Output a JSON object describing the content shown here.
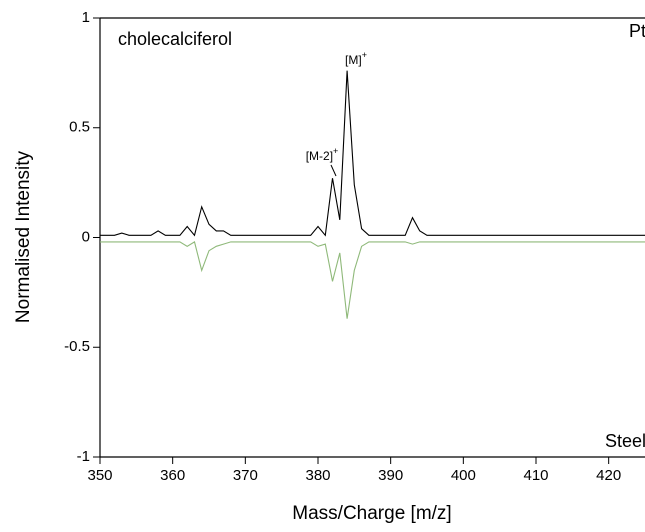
{
  "chart_data": {
    "type": "line",
    "title": "cholecalciferol",
    "x_label": "Mass/Charge [m/z]",
    "y_label": "Normalised Intensity",
    "x": [
      350,
      351,
      352,
      353,
      354,
      355,
      356,
      357,
      358,
      359,
      360,
      361,
      362,
      363,
      364,
      365,
      366,
      367,
      368,
      369,
      370,
      371,
      372,
      373,
      374,
      375,
      376,
      377,
      378,
      379,
      380,
      381,
      382,
      383,
      384,
      385,
      386,
      387,
      388,
      389,
      390,
      391,
      392,
      393,
      394,
      395,
      396,
      397,
      398,
      399,
      400,
      401,
      402,
      403,
      404,
      405,
      406,
      407,
      408,
      409,
      410,
      411,
      412,
      413,
      414,
      415,
      416,
      417,
      418,
      419,
      420,
      421,
      422,
      423,
      424,
      425
    ],
    "series": [
      {
        "name": "Pt",
        "color": "#000000",
        "values": [
          0.01,
          0.01,
          0.01,
          0.02,
          0.01,
          0.01,
          0.01,
          0.01,
          0.03,
          0.01,
          0.01,
          0.01,
          0.05,
          0.01,
          0.14,
          0.06,
          0.03,
          0.03,
          0.01,
          0.01,
          0.01,
          0.01,
          0.01,
          0.01,
          0.01,
          0.01,
          0.01,
          0.01,
          0.01,
          0.01,
          0.05,
          0.01,
          0.27,
          0.08,
          0.76,
          0.24,
          0.04,
          0.01,
          0.01,
          0.01,
          0.01,
          0.01,
          0.01,
          0.09,
          0.03,
          0.01,
          0.01,
          0.01,
          0.01,
          0.01,
          0.01,
          0.01,
          0.01,
          0.01,
          0.01,
          0.01,
          0.01,
          0.01,
          0.01,
          0.01,
          0.01,
          0.01,
          0.01,
          0.01,
          0.01,
          0.01,
          0.01,
          0.01,
          0.01,
          0.01,
          0.01,
          0.01,
          0.01,
          0.01,
          0.01,
          0.01
        ]
      },
      {
        "name": "Steel",
        "color": "#8fb97a",
        "values": [
          -0.02,
          -0.02,
          -0.02,
          -0.02,
          -0.02,
          -0.02,
          -0.02,
          -0.02,
          -0.02,
          -0.02,
          -0.02,
          -0.02,
          -0.04,
          -0.02,
          -0.15,
          -0.06,
          -0.04,
          -0.03,
          -0.02,
          -0.02,
          -0.02,
          -0.02,
          -0.02,
          -0.02,
          -0.02,
          -0.02,
          -0.02,
          -0.02,
          -0.02,
          -0.02,
          -0.04,
          -0.03,
          -0.2,
          -0.07,
          -0.37,
          -0.15,
          -0.04,
          -0.02,
          -0.02,
          -0.02,
          -0.02,
          -0.02,
          -0.02,
          -0.03,
          -0.02,
          -0.02,
          -0.02,
          -0.02,
          -0.02,
          -0.02,
          -0.02,
          -0.02,
          -0.02,
          -0.02,
          -0.02,
          -0.02,
          -0.02,
          -0.02,
          -0.02,
          -0.02,
          -0.02,
          -0.02,
          -0.02,
          -0.02,
          -0.02,
          -0.02,
          -0.02,
          -0.02,
          -0.02,
          -0.02,
          -0.02,
          -0.02,
          -0.02,
          -0.02,
          -0.02,
          -0.02
        ]
      }
    ],
    "annotations": [
      {
        "label": "[M]",
        "charge": "+"
      },
      {
        "label": "[M-2]",
        "charge": "+"
      }
    ],
    "xlim": [
      350,
      425
    ],
    "xticks": [
      350,
      360,
      370,
      380,
      390,
      400,
      410,
      420
    ],
    "ylim": [
      -1,
      1
    ],
    "yticks": [
      -1,
      -0.5,
      0,
      0.5,
      1
    ]
  }
}
